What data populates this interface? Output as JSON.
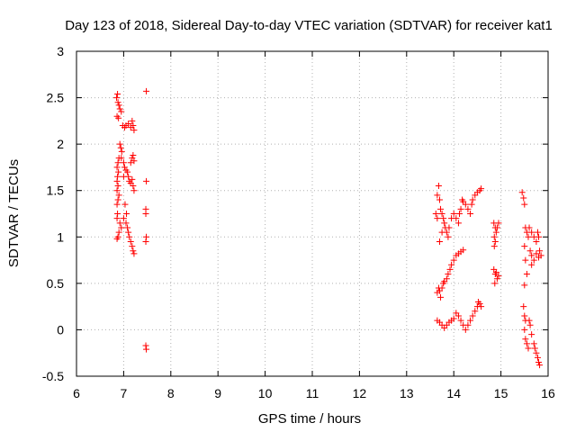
{
  "chart_data": {
    "type": "scatter",
    "title": "Day 123 of 2018, Sidereal Day-to-day VTEC variation (SDTVAR) for receiver kat1",
    "xlabel": "GPS time / hours",
    "ylabel": "SDTVAR / TECUs",
    "xlim": [
      6,
      16
    ],
    "ylim": [
      -0.5,
      3
    ],
    "xticks": [
      "6",
      "7",
      "8",
      "9",
      "10",
      "11",
      "12",
      "13",
      "14",
      "15",
      "16"
    ],
    "yticks": [
      "-0.5",
      "0",
      "0.5",
      "1",
      "1.5",
      "2",
      "2.5",
      "3"
    ],
    "grid": true,
    "marker": "+",
    "color": "#ff0000",
    "series": [
      {
        "name": "SDTVAR (approx. traced)",
        "points": [
          [
            6.85,
            2.5
          ],
          [
            6.88,
            2.45
          ],
          [
            6.9,
            2.42
          ],
          [
            6.92,
            2.38
          ],
          [
            6.86,
            2.3
          ],
          [
            6.89,
            2.28
          ],
          [
            6.95,
            2.35
          ],
          [
            6.98,
            2.2
          ],
          [
            7.02,
            2.18
          ],
          [
            7.05,
            2.2
          ],
          [
            7.1,
            2.22
          ],
          [
            7.15,
            2.18
          ],
          [
            7.18,
            2.25
          ],
          [
            7.2,
            2.2
          ],
          [
            7.22,
            2.15
          ],
          [
            6.87,
            2.54
          ],
          [
            6.92,
            2.0
          ],
          [
            6.94,
            1.96
          ],
          [
            6.96,
            1.92
          ],
          [
            6.9,
            1.85
          ],
          [
            6.88,
            1.8
          ],
          [
            6.86,
            1.75
          ],
          [
            6.89,
            1.7
          ],
          [
            6.87,
            1.65
          ],
          [
            6.86,
            1.6
          ],
          [
            6.88,
            1.55
          ],
          [
            6.86,
            1.5
          ],
          [
            6.9,
            1.45
          ],
          [
            6.88,
            1.4
          ],
          [
            6.86,
            1.35
          ],
          [
            6.87,
            1.25
          ],
          [
            6.86,
            1.2
          ],
          [
            6.95,
            1.85
          ],
          [
            7.0,
            1.8
          ],
          [
            7.02,
            1.75
          ],
          [
            7.05,
            1.72
          ],
          [
            7.08,
            1.7
          ],
          [
            7.1,
            1.65
          ],
          [
            7.12,
            1.6
          ],
          [
            7.15,
            1.58
          ],
          [
            7.18,
            1.62
          ],
          [
            7.2,
            1.55
          ],
          [
            7.22,
            1.5
          ],
          [
            7.15,
            1.8
          ],
          [
            7.18,
            1.85
          ],
          [
            7.2,
            1.88
          ],
          [
            7.22,
            1.82
          ],
          [
            7.0,
            1.65
          ],
          [
            6.92,
            1.15
          ],
          [
            6.95,
            1.1
          ],
          [
            6.88,
            1.0
          ],
          [
            6.86,
            0.98
          ],
          [
            6.9,
            1.05
          ],
          [
            7.0,
            1.2
          ],
          [
            7.05,
            1.15
          ],
          [
            7.08,
            1.1
          ],
          [
            7.1,
            1.05
          ],
          [
            7.12,
            1.0
          ],
          [
            7.15,
            0.95
          ],
          [
            7.18,
            0.9
          ],
          [
            7.2,
            0.85
          ],
          [
            7.22,
            0.82
          ],
          [
            7.03,
            1.35
          ],
          [
            7.06,
            1.25
          ],
          [
            7.48,
            2.57
          ],
          [
            7.48,
            1.6
          ],
          [
            7.47,
            1.3
          ],
          [
            7.47,
            1.25
          ],
          [
            7.48,
            1.0
          ],
          [
            7.47,
            0.95
          ],
          [
            7.47,
            -0.17
          ],
          [
            7.48,
            -0.21
          ],
          [
            13.62,
            1.25
          ],
          [
            13.65,
            1.2
          ],
          [
            13.68,
            1.55
          ],
          [
            13.65,
            1.45
          ],
          [
            13.7,
            1.4
          ],
          [
            13.72,
            1.3
          ],
          [
            13.75,
            1.25
          ],
          [
            13.78,
            1.2
          ],
          [
            13.8,
            1.15
          ],
          [
            13.82,
            1.1
          ],
          [
            13.85,
            1.05
          ],
          [
            13.88,
            1.0
          ],
          [
            13.7,
            0.95
          ],
          [
            13.75,
            1.05
          ],
          [
            13.9,
            1.1
          ],
          [
            13.95,
            1.2
          ],
          [
            14.0,
            1.25
          ],
          [
            14.05,
            1.2
          ],
          [
            14.1,
            1.15
          ],
          [
            14.12,
            1.25
          ],
          [
            14.15,
            1.3
          ],
          [
            14.18,
            1.4
          ],
          [
            14.2,
            1.38
          ],
          [
            14.25,
            1.35
          ],
          [
            14.3,
            1.3
          ],
          [
            14.35,
            1.25
          ],
          [
            14.38,
            1.35
          ],
          [
            14.4,
            1.4
          ],
          [
            14.45,
            1.45
          ],
          [
            14.5,
            1.48
          ],
          [
            14.55,
            1.5
          ],
          [
            14.58,
            1.52
          ],
          [
            13.65,
            0.4
          ],
          [
            13.68,
            0.45
          ],
          [
            13.7,
            0.42
          ],
          [
            13.72,
            0.35
          ],
          [
            13.75,
            0.45
          ],
          [
            13.78,
            0.5
          ],
          [
            13.8,
            0.52
          ],
          [
            13.85,
            0.55
          ],
          [
            13.88,
            0.6
          ],
          [
            13.92,
            0.65
          ],
          [
            13.95,
            0.7
          ],
          [
            14.0,
            0.75
          ],
          [
            14.05,
            0.8
          ],
          [
            14.1,
            0.82
          ],
          [
            14.15,
            0.84
          ],
          [
            14.2,
            0.86
          ],
          [
            13.65,
            0.1
          ],
          [
            13.7,
            0.08
          ],
          [
            13.75,
            0.05
          ],
          [
            13.8,
            0.02
          ],
          [
            13.85,
            0.05
          ],
          [
            13.9,
            0.08
          ],
          [
            13.95,
            0.1
          ],
          [
            14.0,
            0.12
          ],
          [
            14.05,
            0.18
          ],
          [
            14.1,
            0.15
          ],
          [
            14.15,
            0.1
          ],
          [
            14.2,
            0.05
          ],
          [
            14.25,
            0.0
          ],
          [
            14.3,
            0.05
          ],
          [
            14.35,
            0.1
          ],
          [
            14.4,
            0.15
          ],
          [
            14.45,
            0.2
          ],
          [
            14.5,
            0.25
          ],
          [
            14.52,
            0.3
          ],
          [
            14.55,
            0.28
          ],
          [
            14.58,
            0.25
          ],
          [
            14.85,
            1.15
          ],
          [
            14.88,
            1.1
          ],
          [
            14.9,
            1.05
          ],
          [
            14.86,
            1.0
          ],
          [
            14.88,
            0.95
          ],
          [
            14.92,
            1.1
          ],
          [
            14.95,
            1.15
          ],
          [
            14.86,
            0.9
          ],
          [
            14.85,
            0.65
          ],
          [
            14.88,
            0.6
          ],
          [
            14.9,
            0.62
          ],
          [
            14.92,
            0.55
          ],
          [
            14.95,
            0.58
          ],
          [
            14.87,
            0.5
          ],
          [
            15.45,
            1.48
          ],
          [
            15.48,
            1.42
          ],
          [
            15.5,
            1.35
          ],
          [
            15.52,
            1.1
          ],
          [
            15.55,
            1.05
          ],
          [
            15.58,
            1.0
          ],
          [
            15.5,
            0.9
          ],
          [
            15.52,
            0.75
          ],
          [
            15.55,
            0.6
          ],
          [
            15.5,
            0.48
          ],
          [
            15.6,
            1.1
          ],
          [
            15.65,
            1.05
          ],
          [
            15.7,
            1.0
          ],
          [
            15.75,
            0.95
          ],
          [
            15.78,
            1.05
          ],
          [
            15.8,
            1.0
          ],
          [
            15.62,
            0.85
          ],
          [
            15.65,
            0.8
          ],
          [
            15.7,
            0.75
          ],
          [
            15.75,
            0.82
          ],
          [
            15.8,
            0.78
          ],
          [
            15.82,
            0.85
          ],
          [
            15.85,
            0.8
          ],
          [
            15.65,
            0.7
          ],
          [
            15.48,
            0.25
          ],
          [
            15.5,
            0.15
          ],
          [
            15.52,
            0.1
          ],
          [
            15.5,
            0.0
          ],
          [
            15.52,
            -0.1
          ],
          [
            15.55,
            -0.15
          ],
          [
            15.58,
            -0.2
          ],
          [
            15.6,
            0.1
          ],
          [
            15.62,
            0.05
          ],
          [
            15.65,
            -0.05
          ],
          [
            15.7,
            -0.15
          ],
          [
            15.72,
            -0.2
          ],
          [
            15.75,
            -0.25
          ],
          [
            15.78,
            -0.3
          ],
          [
            15.8,
            -0.35
          ],
          [
            15.82,
            -0.38
          ]
        ]
      }
    ]
  }
}
